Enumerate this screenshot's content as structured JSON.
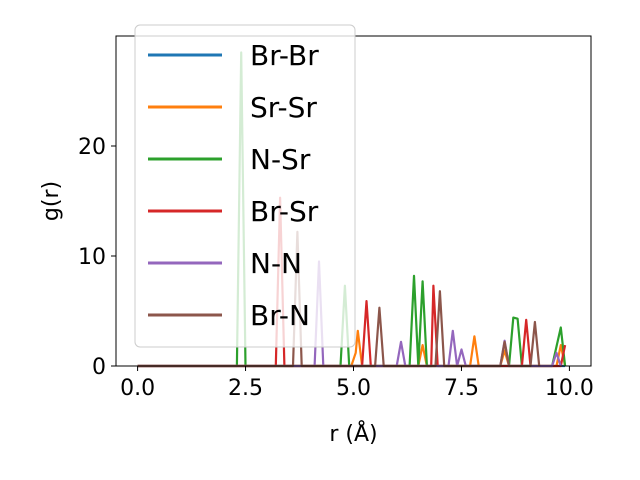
{
  "chart_data": {
    "type": "line",
    "xlabel": "r (Å)",
    "ylabel": "g(r)",
    "xlim": [
      -0.5,
      10.5
    ],
    "ylim": [
      0,
      30.0
    ],
    "xticks": [
      0.0,
      2.5,
      5.0,
      7.5,
      10.0
    ],
    "xtick_labels": [
      "0.0",
      "2.5",
      "5.0",
      "7.5",
      "10.0"
    ],
    "yticks": [
      0,
      10,
      20
    ],
    "ytick_labels": [
      "0",
      "10",
      "20"
    ],
    "grid": false,
    "legend_position": "top-left",
    "series": [
      {
        "name": "Br-Br",
        "color": "#1f77b4",
        "points": [
          [
            0.0,
            0
          ],
          [
            9.9,
            0
          ]
        ]
      },
      {
        "name": "Sr-Sr",
        "color": "#ff7f0e",
        "points": [
          [
            0.0,
            0
          ],
          [
            4.95,
            0
          ],
          [
            5.05,
            1.2
          ],
          [
            5.1,
            3.2
          ],
          [
            5.2,
            0
          ],
          [
            6.5,
            0
          ],
          [
            6.6,
            1.9
          ],
          [
            6.7,
            0
          ],
          [
            7.7,
            0
          ],
          [
            7.8,
            2.7
          ],
          [
            7.9,
            0
          ],
          [
            8.4,
            0
          ],
          [
            8.5,
            1.4
          ],
          [
            8.6,
            0
          ],
          [
            9.7,
            0
          ],
          [
            9.8,
            1.9
          ],
          [
            9.9,
            0
          ]
        ]
      },
      {
        "name": "N-Sr",
        "color": "#2ca02c",
        "points": [
          [
            0.0,
            0
          ],
          [
            2.3,
            0
          ],
          [
            2.4,
            28.5
          ],
          [
            2.5,
            0
          ],
          [
            4.7,
            0
          ],
          [
            4.8,
            7.3
          ],
          [
            4.9,
            0
          ],
          [
            6.3,
            0
          ],
          [
            6.4,
            8.2
          ],
          [
            6.5,
            0
          ],
          [
            6.6,
            7.7
          ],
          [
            6.7,
            0
          ],
          [
            8.6,
            0
          ],
          [
            8.7,
            4.4
          ],
          [
            8.8,
            4.3
          ],
          [
            8.9,
            0
          ],
          [
            9.6,
            0
          ],
          [
            9.8,
            3.5
          ],
          [
            9.9,
            0
          ]
        ]
      },
      {
        "name": "Br-Sr",
        "color": "#d62728",
        "points": [
          [
            0.0,
            0
          ],
          [
            3.2,
            0
          ],
          [
            3.3,
            15.3
          ],
          [
            3.4,
            0
          ],
          [
            5.2,
            0
          ],
          [
            5.3,
            5.9
          ],
          [
            5.4,
            0
          ],
          [
            6.8,
            0
          ],
          [
            6.85,
            7.3
          ],
          [
            6.95,
            0
          ],
          [
            8.9,
            0
          ],
          [
            9.0,
            4.2
          ],
          [
            9.1,
            0
          ],
          [
            9.8,
            0
          ],
          [
            9.9,
            1.9
          ]
        ]
      },
      {
        "name": "N-N",
        "color": "#9467bd",
        "points": [
          [
            0.0,
            0
          ],
          [
            4.1,
            0
          ],
          [
            4.2,
            9.5
          ],
          [
            4.3,
            0
          ],
          [
            6.0,
            0
          ],
          [
            6.1,
            2.2
          ],
          [
            6.2,
            0
          ],
          [
            7.2,
            0
          ],
          [
            7.3,
            3.2
          ],
          [
            7.4,
            0
          ],
          [
            7.5,
            1.5
          ],
          [
            7.6,
            0
          ],
          [
            8.4,
            0
          ],
          [
            8.5,
            2.3
          ],
          [
            8.6,
            0
          ],
          [
            9.6,
            0
          ],
          [
            9.7,
            1.2
          ],
          [
            9.8,
            0
          ]
        ]
      },
      {
        "name": "Br-N",
        "color": "#8c564b",
        "points": [
          [
            0.0,
            0
          ],
          [
            3.6,
            0
          ],
          [
            3.7,
            12.2
          ],
          [
            3.8,
            0
          ],
          [
            5.5,
            0
          ],
          [
            5.6,
            5.3
          ],
          [
            5.7,
            0
          ],
          [
            6.9,
            0
          ],
          [
            7.0,
            6.8
          ],
          [
            7.1,
            0
          ],
          [
            8.4,
            0
          ],
          [
            8.5,
            2.2
          ],
          [
            8.6,
            0
          ],
          [
            9.1,
            0
          ],
          [
            9.2,
            4.0
          ],
          [
            9.3,
            0
          ]
        ]
      }
    ]
  }
}
